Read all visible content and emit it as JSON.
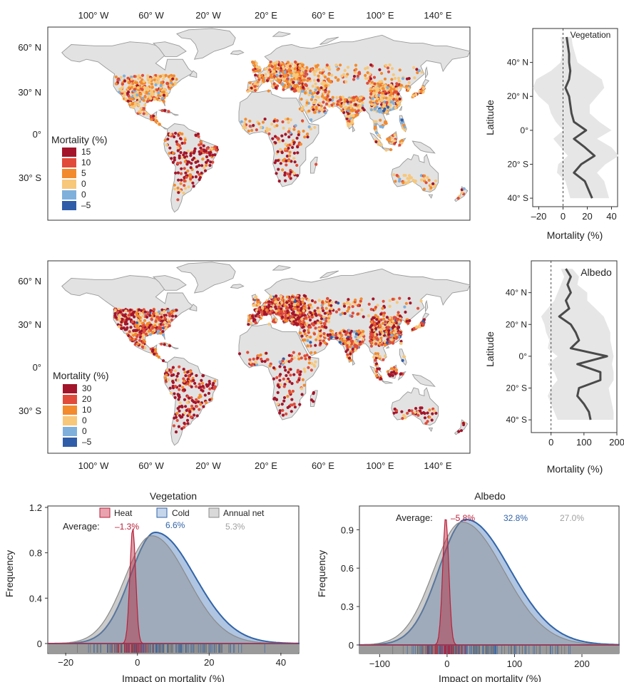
{
  "colors": {
    "land": "#e2e2e2",
    "coast": "#9a9a9a",
    "heat": "#b8203a",
    "cold": "#3264a8",
    "net": "#8a8a8a",
    "band": "#e6e6e6",
    "line": "#4a4a4a"
  },
  "maps": [
    {
      "id": "vegetation-map",
      "top_axis": {
        "ticks": [
          "100° W",
          "60° W",
          "20° W",
          "20° E",
          "60° E",
          "100° E",
          "140° E"
        ]
      },
      "lat_ticks": [
        "60° N",
        "30° N",
        "0°",
        "30° S"
      ],
      "legend": {
        "title": "Mortality (%)",
        "entries": [
          {
            "label": "15",
            "color": "#a3152a"
          },
          {
            "label": "10",
            "color": "#e04b3a"
          },
          {
            "label": "5",
            "color": "#f28a2e"
          },
          {
            "label": "0",
            "color": "#f7c77a"
          },
          {
            "label": "0",
            "color": "#7fb0dc"
          },
          {
            "label": "–5",
            "color": "#2f5da8"
          }
        ]
      }
    },
    {
      "id": "albedo-map",
      "bottom_axis": {
        "ticks": [
          "100° W",
          "60° W",
          "20° W",
          "20° E",
          "60° E",
          "100° E",
          "140° E"
        ]
      },
      "lat_ticks": [
        "60° N",
        "30° N",
        "0°",
        "30° S"
      ],
      "legend": {
        "title": "Mortality (%)",
        "entries": [
          {
            "label": "30",
            "color": "#a3152a"
          },
          {
            "label": "20",
            "color": "#e04b3a"
          },
          {
            "label": "10",
            "color": "#f28a2e"
          },
          {
            "label": "0",
            "color": "#f7c77a"
          },
          {
            "label": "0",
            "color": "#7fb0dc"
          },
          {
            "label": "–5",
            "color": "#2f5da8"
          }
        ]
      }
    }
  ],
  "chart_data": [
    {
      "type": "line",
      "id": "vegetation-latitude-profile",
      "title": "Vegetation",
      "xlabel": "Mortality (%)",
      "ylabel": "Latitude",
      "xlim": [
        -25,
        45
      ],
      "ylim": [
        -45,
        60
      ],
      "x_ticks": [
        "–20",
        "0",
        "20",
        "40"
      ],
      "y_ticks": [
        "40° N",
        "20° N",
        "0°",
        "20° S",
        "40° S"
      ],
      "series": [
        {
          "latitude": [
            55,
            50,
            45,
            40,
            35,
            30,
            25,
            20,
            15,
            10,
            5,
            0,
            -5,
            -10,
            -15,
            -20,
            -25,
            -30,
            -35,
            -40
          ],
          "values": [
            3,
            4,
            5,
            5,
            6,
            5,
            2,
            5,
            6,
            7,
            9,
            19,
            9,
            18,
            26,
            15,
            9,
            18,
            21,
            24
          ]
        }
      ],
      "band": {
        "latitude": [
          55,
          50,
          45,
          40,
          35,
          30,
          25,
          20,
          15,
          10,
          5,
          0,
          -5,
          -10,
          -15,
          -20,
          -25,
          -30,
          -35,
          -40
        ],
        "low": [
          -2,
          -1,
          -1,
          -2,
          -10,
          -22,
          -25,
          -20,
          -12,
          -10,
          -6,
          0,
          -8,
          -2,
          4,
          -4,
          -5,
          2,
          4,
          6
        ],
        "high": [
          7,
          8,
          10,
          12,
          22,
          32,
          34,
          28,
          22,
          22,
          30,
          40,
          28,
          40,
          46,
          35,
          28,
          34,
          36,
          38
        ]
      }
    },
    {
      "type": "line",
      "id": "albedo-latitude-profile",
      "title": "Albedo",
      "xlabel": "Mortality (%)",
      "ylabel": "Latitude",
      "xlim": [
        -60,
        200
      ],
      "ylim": [
        -48,
        60
      ],
      "x_ticks": [
        "0",
        "100",
        "200"
      ],
      "y_ticks": [
        "40° N",
        "20° N",
        "0°",
        "20° S",
        "40° S"
      ],
      "series": [
        {
          "latitude": [
            55,
            50,
            45,
            40,
            35,
            30,
            25,
            20,
            15,
            10,
            5,
            0,
            -5,
            -10,
            -15,
            -20,
            -25,
            -30,
            -35,
            -40
          ],
          "values": [
            45,
            60,
            50,
            60,
            45,
            55,
            25,
            60,
            75,
            85,
            60,
            170,
            80,
            150,
            150,
            85,
            80,
            100,
            115,
            120
          ]
        }
      ],
      "band": {
        "latitude": [
          55,
          50,
          45,
          40,
          35,
          30,
          25,
          20,
          15,
          10,
          5,
          0,
          -5,
          -10,
          -15,
          -20,
          -25,
          -30,
          -35,
          -40
        ],
        "low": [
          30,
          40,
          30,
          20,
          10,
          -10,
          -30,
          -20,
          -15,
          -5,
          -10,
          20,
          -10,
          10,
          20,
          0,
          -10,
          0,
          10,
          20
        ],
        "high": [
          65,
          85,
          80,
          110,
          110,
          135,
          160,
          170,
          180,
          180,
          185,
          190,
          185,
          190,
          190,
          175,
          180,
          185,
          190,
          190
        ]
      }
    },
    {
      "type": "area",
      "id": "vegetation-distribution",
      "title": "Vegetation",
      "xlabel": "Impact on mortality (%)",
      "ylabel": "Frequency",
      "xlim": [
        -25,
        45
      ],
      "ylim": [
        0,
        1.2
      ],
      "x_ticks": [
        -20,
        0,
        20,
        40
      ],
      "y_ticks": [
        "0",
        "0.4",
        "0.8",
        "1.2"
      ],
      "legend": [
        "Heat",
        "Cold",
        "Annual net"
      ],
      "average_label": "Average:",
      "averages": [
        "–1.3%",
        "6.6%",
        "5.3%"
      ],
      "series": [
        {
          "name": "Heat",
          "mean": -1.3,
          "sd": 0.8,
          "peak": 1.02
        },
        {
          "name": "Cold",
          "mean": 5.0,
          "sd_left": 7.0,
          "sd_right": 11.0,
          "peak": 0.98
        },
        {
          "name": "Annual net",
          "mean": 4.0,
          "sd_left": 7.5,
          "sd_right": 10.0,
          "peak": 0.95
        }
      ]
    },
    {
      "type": "area",
      "id": "albedo-distribution",
      "title": "Albedo",
      "xlabel": "Impact on mortality (%)",
      "ylabel": "Frequency",
      "xlim": [
        -130,
        255
      ],
      "ylim": [
        0,
        1.08
      ],
      "x_ticks": [
        -100,
        0,
        100,
        200
      ],
      "y_ticks": [
        "0",
        "0.3",
        "0.6",
        "0.9"
      ],
      "averages_label": "Average:",
      "averages": [
        "–5.8%",
        "32.8%",
        "27.0%"
      ],
      "series": [
        {
          "name": "Heat",
          "mean": -2.0,
          "sd": 4.5,
          "peak": 1.0
        },
        {
          "name": "Cold",
          "mean": 28.0,
          "sd_left": 40.0,
          "sd_right": 65.0,
          "peak": 0.98
        },
        {
          "name": "Annual net",
          "mean": 22.0,
          "sd_left": 42.0,
          "sd_right": 62.0,
          "peak": 0.96
        }
      ]
    }
  ]
}
